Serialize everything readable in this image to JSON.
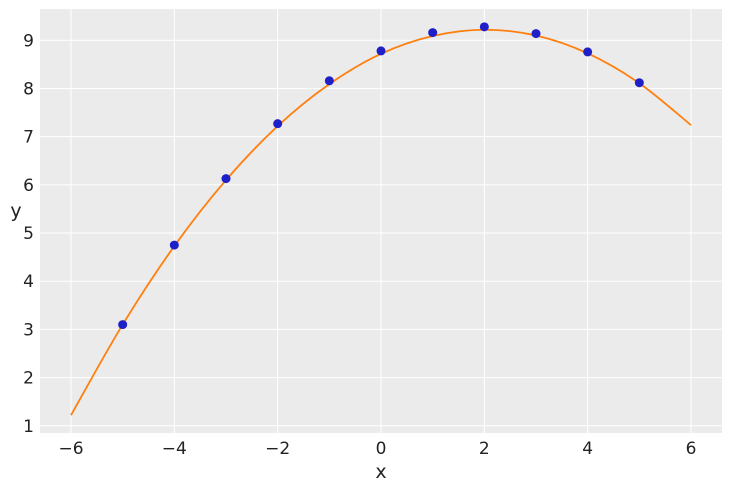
{
  "chart_data": {
    "type": "scatter",
    "title": "",
    "xlabel": "x",
    "ylabel": "y",
    "xlim": [
      -6.6,
      6.6
    ],
    "ylim": [
      0.85,
      9.65
    ],
    "x_ticks": [
      -6,
      -4,
      -2,
      0,
      2,
      4,
      6
    ],
    "y_ticks": [
      1,
      2,
      3,
      4,
      5,
      6,
      7,
      8,
      9
    ],
    "x_tick_labels": [
      "−6",
      "−4",
      "−2",
      "0",
      "2",
      "4",
      "6"
    ],
    "y_tick_labels": [
      "1",
      "2",
      "3",
      "4",
      "5",
      "6",
      "7",
      "8",
      "9"
    ],
    "grid": true,
    "background": "#ebebeb",
    "series": [
      {
        "kind": "scatter",
        "color": "#1f1fc8",
        "x": [
          -5,
          -4,
          -3,
          -2,
          -1,
          0,
          1,
          2,
          3,
          4,
          5
        ],
        "y": [
          3.1,
          4.75,
          6.13,
          7.27,
          8.16,
          8.78,
          9.16,
          9.28,
          9.14,
          8.76,
          8.12
        ]
      },
      {
        "kind": "line",
        "color": "#ff7f0e",
        "x": [
          -6,
          -5,
          -4,
          -3,
          -2,
          -1,
          0,
          1,
          2,
          3,
          4,
          5,
          6
        ],
        "y": [
          1.22,
          3.1,
          4.73,
          6.1,
          7.22,
          8.09,
          8.72,
          9.09,
          9.22,
          9.1,
          8.73,
          8.11,
          7.24
        ]
      }
    ]
  }
}
